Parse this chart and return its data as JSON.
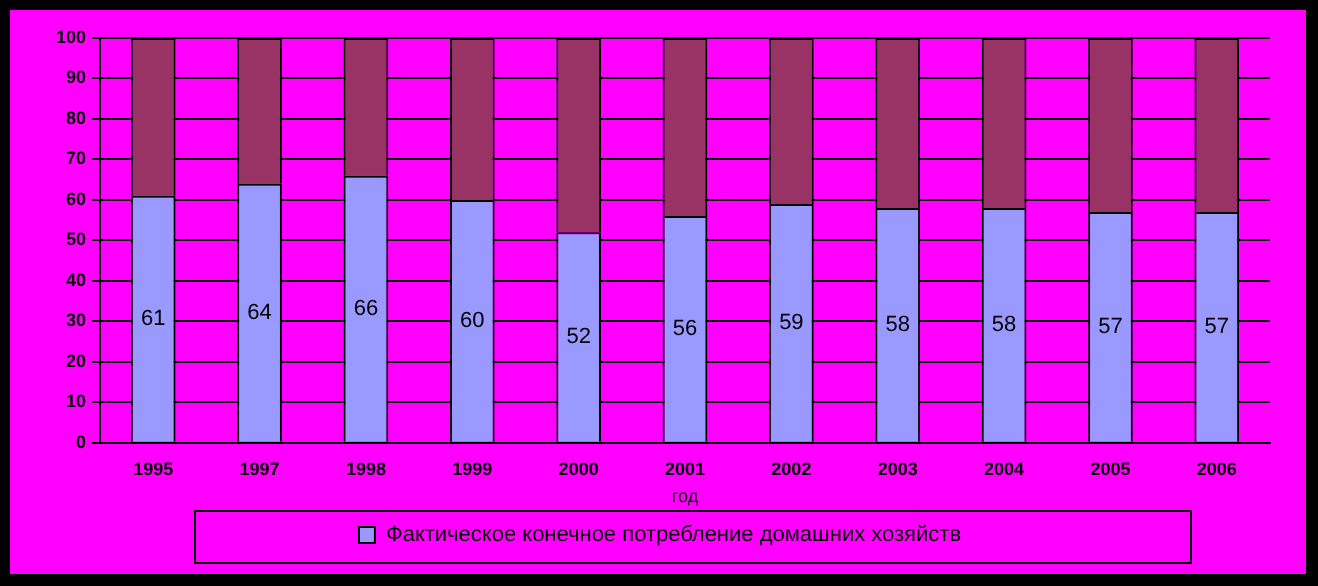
{
  "chart_data": {
    "type": "bar",
    "stacked": true,
    "xlabel": "год",
    "categories": [
      "1995",
      "1997",
      "1998",
      "1999",
      "2000",
      "2001",
      "2002",
      "2003",
      "2004",
      "2005",
      "2006"
    ],
    "series": [
      {
        "name": "Фактическое конечное потребление домашних хозяйств",
        "color": "#9999ff",
        "values": [
          61,
          64,
          66,
          60,
          52,
          56,
          59,
          58,
          58,
          57,
          57
        ],
        "value_labels": [
          "61",
          "64",
          "66",
          "60",
          "52",
          "56",
          "59",
          "58",
          "58",
          "57",
          "57"
        ]
      },
      {
        "color": "#993366",
        "values": [
          39,
          36,
          34,
          40,
          48,
          44,
          41,
          42,
          42,
          43,
          43
        ]
      }
    ],
    "ylim": [
      0,
      100
    ],
    "yticks": [
      0,
      10,
      20,
      30,
      40,
      50,
      60,
      70,
      80,
      90,
      100
    ],
    "grid": "y",
    "legend": "bottom"
  }
}
